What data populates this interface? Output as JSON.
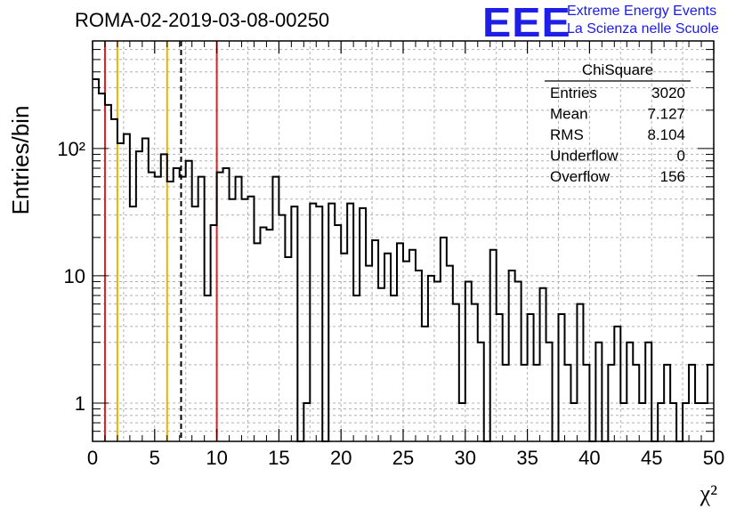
{
  "title": "ROMA-02-2019-03-08-00250",
  "logo": {
    "mark": "EEE",
    "line1": "Extreme Energy Events",
    "line2": "La Scienza nelle Scuole"
  },
  "colors": {
    "histogram": "#000000",
    "red_line": "#e02020",
    "orange_line": "#f0b000",
    "dashed_line": "#000000",
    "logo": "#1e1ee6",
    "grid": "#aaaaaa"
  },
  "stats": {
    "title": "ChiSquare",
    "rows": [
      {
        "label": "Entries",
        "value": "3020"
      },
      {
        "label": "Mean",
        "value": "7.127"
      },
      {
        "label": "RMS",
        "value": "8.104"
      },
      {
        "label": "Underflow",
        "value": "0"
      },
      {
        "label": "Overflow",
        "value": "156"
      }
    ]
  },
  "chart_data": {
    "type": "histogram",
    "xlabel": "χ²",
    "ylabel": "Entries/bin",
    "xlim": [
      0,
      50
    ],
    "ylim": [
      0.5,
      700
    ],
    "yscale": "log",
    "grid": true,
    "x_ticks": [
      "0",
      "5",
      "10",
      "15",
      "20",
      "25",
      "30",
      "35",
      "40",
      "45",
      "50"
    ],
    "y_ticks": [
      {
        "value": 1,
        "label": "1"
      },
      {
        "value": 10,
        "label": "10"
      },
      {
        "value": 100,
        "label": "10²"
      }
    ],
    "bin_width": 0.5,
    "values": [
      350,
      270,
      220,
      170,
      110,
      130,
      35,
      95,
      120,
      65,
      60,
      90,
      55,
      70,
      60,
      80,
      35,
      60,
      7,
      25,
      65,
      70,
      40,
      60,
      40,
      42,
      18,
      24,
      23,
      60,
      30,
      14,
      35,
      0,
      1,
      37,
      35,
      0,
      37,
      25,
      15,
      37,
      7,
      34,
      12,
      19,
      8,
      15,
      7,
      18,
      13,
      16,
      11,
      4,
      10,
      9,
      20,
      12,
      6,
      1,
      9,
      6,
      3,
      0,
      16,
      5,
      2,
      11,
      9,
      2,
      5,
      2,
      8,
      3,
      0,
      5,
      2,
      1,
      6,
      2,
      0,
      3,
      0,
      2,
      4,
      1,
      3,
      2,
      1,
      3,
      0,
      1,
      2,
      1,
      0,
      1,
      2,
      1,
      1,
      2
    ],
    "vertical_lines": [
      {
        "x": 1,
        "style": "solid",
        "color": "#e02020"
      },
      {
        "x": 2,
        "style": "solid",
        "color": "#f0b000"
      },
      {
        "x": 6,
        "style": "solid",
        "color": "#f0b000"
      },
      {
        "x": 7.127,
        "style": "dashed",
        "color": "#000000"
      },
      {
        "x": 10,
        "style": "solid",
        "color": "#e02020"
      }
    ]
  }
}
